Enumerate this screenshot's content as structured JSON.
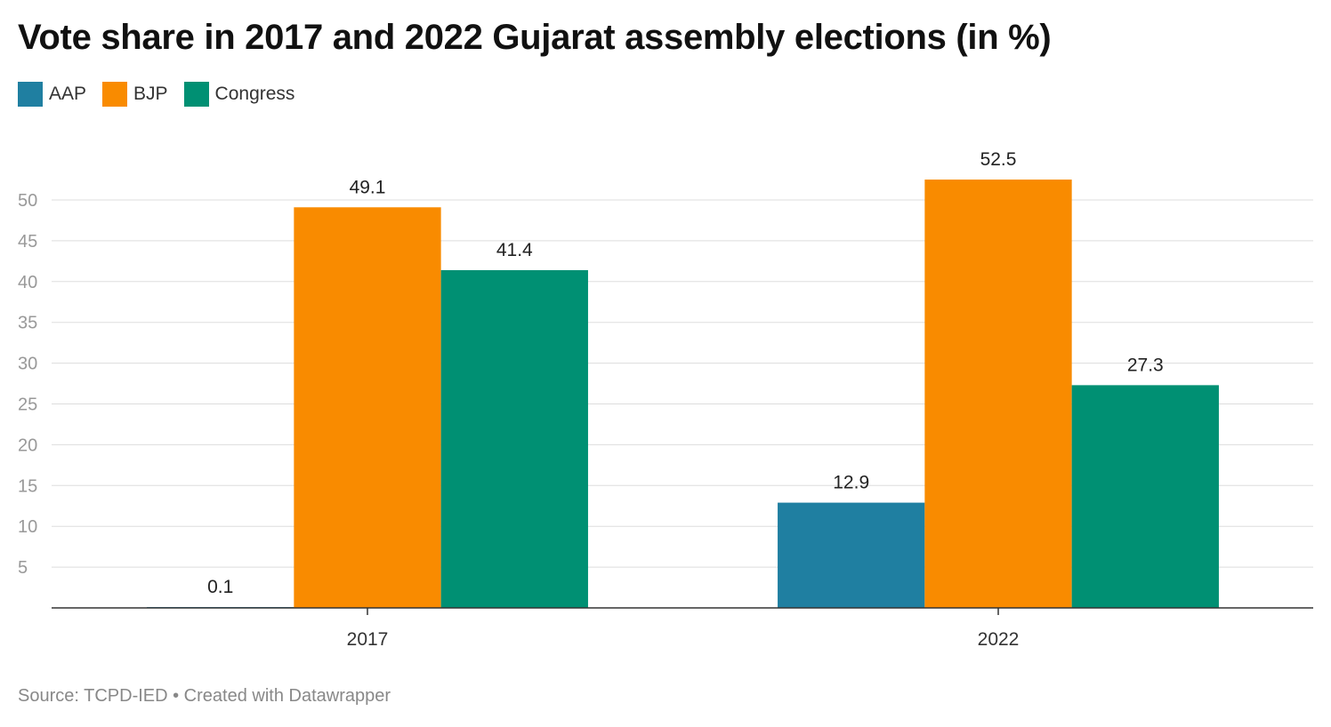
{
  "title": "Vote share in 2017 and 2022 Gujarat assembly elections (in %)",
  "source": "Source: TCPD-IED • Created with Datawrapper",
  "chart_data": {
    "type": "bar",
    "title": "Vote share in 2017 and 2022 Gujarat assembly elections (in %)",
    "categories": [
      "2017",
      "2022"
    ],
    "series": [
      {
        "name": "AAP",
        "color": "#1f7fa1",
        "values": [
          0.1,
          12.9
        ]
      },
      {
        "name": "BJP",
        "color": "#f98b00",
        "values": [
          49.1,
          52.5
        ]
      },
      {
        "name": "Congress",
        "color": "#009073",
        "values": [
          41.4,
          27.3
        ]
      }
    ],
    "data_labels": [
      [
        "0.1",
        "12.9"
      ],
      [
        "49.1",
        "52.5"
      ],
      [
        "41.4",
        "27.3"
      ]
    ],
    "yticks": [
      5,
      10,
      15,
      20,
      25,
      30,
      35,
      40,
      45,
      50
    ],
    "ylim": [
      0,
      50
    ],
    "xlabel": "",
    "ylabel": "",
    "grid": true,
    "legend_position": "top-left"
  }
}
